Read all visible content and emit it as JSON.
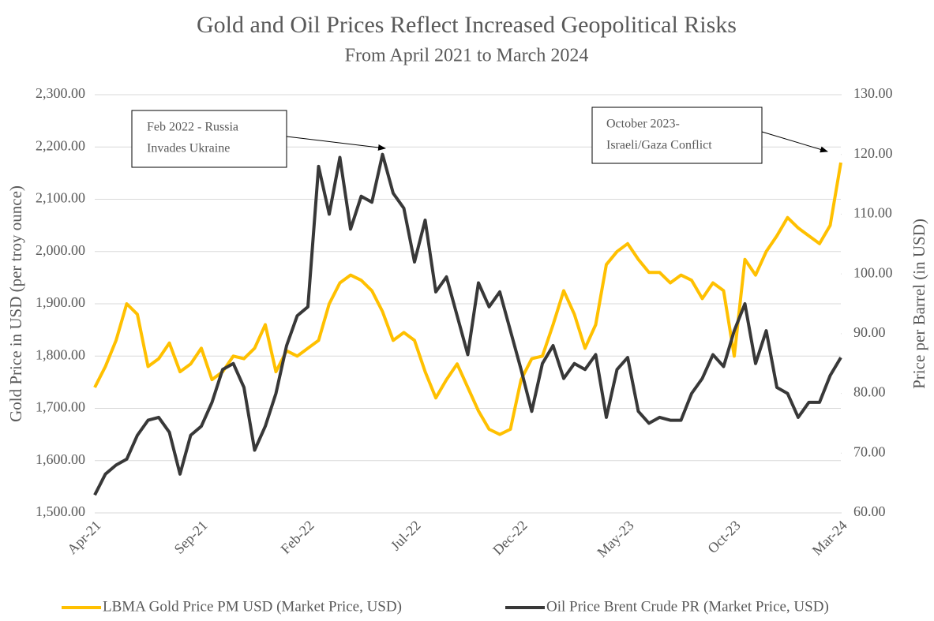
{
  "chart_data": {
    "type": "line",
    "title": "Gold and Oil Prices Reflect Increased Geopolitical Risks",
    "subtitle": "From April 2021 to March 2024",
    "y_label": "Gold Price in USD (per troy ounce)",
    "y2_label": "Price per Barrel (in USD)",
    "categories": [
      "Apr-21",
      null,
      null,
      null,
      null,
      null,
      null,
      null,
      null,
      null,
      "Sep-21",
      null,
      null,
      null,
      null,
      null,
      null,
      null,
      null,
      null,
      "Feb-22",
      null,
      null,
      null,
      null,
      null,
      null,
      null,
      null,
      null,
      "Jul-22",
      null,
      null,
      null,
      null,
      null,
      null,
      null,
      null,
      null,
      "Dec-22",
      null,
      null,
      null,
      null,
      null,
      null,
      null,
      null,
      null,
      "May-23",
      null,
      null,
      null,
      null,
      null,
      null,
      null,
      null,
      null,
      "Oct-23",
      null,
      null,
      null,
      null,
      null,
      null,
      null,
      null,
      null,
      "Mar-24"
    ],
    "series": [
      {
        "name": "LBMA Gold Price PM USD (Market Price, USD)",
        "color": "#ffc000",
        "axis": "y",
        "values": [
          1740,
          1780,
          1830,
          1900,
          1880,
          1780,
          1795,
          1825,
          1770,
          1785,
          1815,
          1755,
          1770,
          1800,
          1795,
          1815,
          1860,
          1770,
          1810,
          1800,
          1815,
          1830,
          1900,
          1940,
          1955,
          1945,
          1925,
          1885,
          1830,
          1845,
          1830,
          1770,
          1720,
          1755,
          1785,
          1740,
          1695,
          1660,
          1650,
          1660,
          1755,
          1795,
          1800,
          1860,
          1925,
          1880,
          1815,
          1860,
          1975,
          2000,
          2015,
          1985,
          1960,
          1960,
          1940,
          1955,
          1945,
          1910,
          1940,
          1925,
          1800,
          1985,
          1955,
          2000,
          2030,
          2065,
          2045,
          2030,
          2015,
          2050,
          2170
        ]
      },
      {
        "name": "Oil Price Brent Crude PR (Market Price, USD)",
        "color": "#383838",
        "axis": "y2",
        "values": [
          63,
          66.5,
          68,
          69,
          73,
          75.5,
          76,
          73.5,
          66.5,
          73,
          74.5,
          78.5,
          84,
          85,
          81,
          70.5,
          74.5,
          80,
          88,
          93,
          94.5,
          118,
          110,
          119.5,
          107.5,
          113,
          112,
          120,
          113.5,
          111,
          102,
          109,
          97,
          99.5,
          93,
          86.5,
          98.5,
          94.5,
          97,
          90.5,
          84,
          77,
          85,
          88,
          82.5,
          85,
          84,
          86.5,
          76,
          84,
          86,
          77,
          75,
          76,
          75.5,
          75.5,
          80,
          82.5,
          86.5,
          84.5,
          90.5,
          95,
          85,
          90.5,
          81,
          80,
          76,
          78.5,
          78.5,
          83,
          86
        ]
      }
    ],
    "ylim": [
      1500,
      2300
    ],
    "yticks": [
      {
        "value": 1500,
        "label": "1,500.00"
      },
      {
        "value": 1600,
        "label": "1,600.00"
      },
      {
        "value": 1700,
        "label": "1,700.00"
      },
      {
        "value": 1800,
        "label": "1,800.00"
      },
      {
        "value": 1900,
        "label": "1,900.00"
      },
      {
        "value": 2000,
        "label": "2,000.00"
      },
      {
        "value": 2100,
        "label": "2,100.00"
      },
      {
        "value": 2200,
        "label": "2,200.00"
      },
      {
        "value": 2300,
        "label": "2,300.00"
      }
    ],
    "y2lim": [
      60,
      130
    ],
    "y2ticks": [
      {
        "value": 60,
        "label": "60.00"
      },
      {
        "value": 70,
        "label": "70.00"
      },
      {
        "value": 80,
        "label": "80.00"
      },
      {
        "value": 90,
        "label": "90.00"
      },
      {
        "value": 100,
        "label": "100.00"
      },
      {
        "value": 110,
        "label": "110.00"
      },
      {
        "value": 120,
        "label": "120.00"
      },
      {
        "value": 130,
        "label": "130.00"
      }
    ],
    "grid": true,
    "legend": "bottom",
    "annotations": [
      {
        "lines": [
          "Feb 2022 - Russia",
          "Invades Ukraine"
        ]
      },
      {
        "lines": [
          "October 2023-",
          "Israeli/Gaza Conflict"
        ]
      }
    ]
  }
}
